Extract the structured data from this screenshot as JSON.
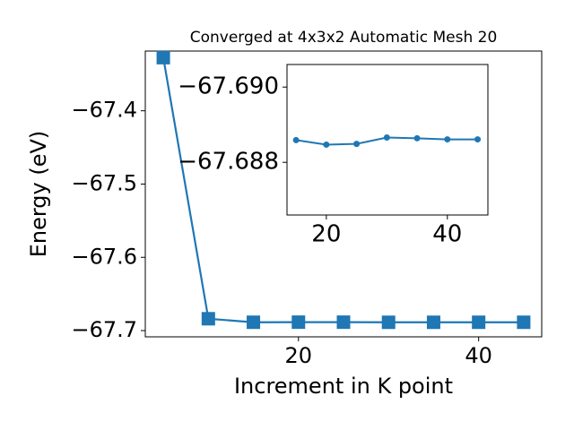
{
  "chart_data": [
    {
      "type": "line",
      "title": "Converged at 4x3x2 Automatic Mesh 20",
      "xlabel": "Increment in K point",
      "ylabel": "Energy (eV)",
      "x": [
        5,
        10,
        15,
        20,
        25,
        30,
        35,
        40,
        45
      ],
      "series": [
        {
          "color": "#1f77b4",
          "marker": "square",
          "values": [
            -67.3275,
            -67.6838,
            -67.68859,
            -67.68847,
            -67.68849,
            -67.68866,
            -67.68864,
            -67.68861,
            -67.68861
          ]
        }
      ],
      "xlim": [
        3,
        47
      ],
      "ylim": [
        -67.7085,
        -67.3185
      ],
      "xticks": [
        20,
        40
      ],
      "yticks": [
        {
          "value": -67.4,
          "label": "−67.4"
        },
        {
          "value": -67.5,
          "label": "−67.5"
        },
        {
          "value": -67.6,
          "label": "−67.6"
        },
        {
          "value": -67.7,
          "label": "−67.7"
        }
      ]
    },
    {
      "type": "line",
      "x": [
        15,
        20,
        25,
        30,
        35,
        40,
        45
      ],
      "series": [
        {
          "color": "#1f77b4",
          "marker": "circle",
          "values": [
            -67.68859,
            -67.68847,
            -67.68849,
            -67.68866,
            -67.68864,
            -67.68861,
            -67.68861
          ]
        }
      ],
      "xlim": [
        13.5,
        46.7
      ],
      "ylim": [
        -67.6866,
        -67.6906
      ],
      "xticks": [
        20,
        40
      ],
      "yticks": [
        {
          "value": -67.69,
          "label": "−67.690"
        },
        {
          "value": -67.688,
          "label": "−67.688"
        }
      ]
    }
  ]
}
